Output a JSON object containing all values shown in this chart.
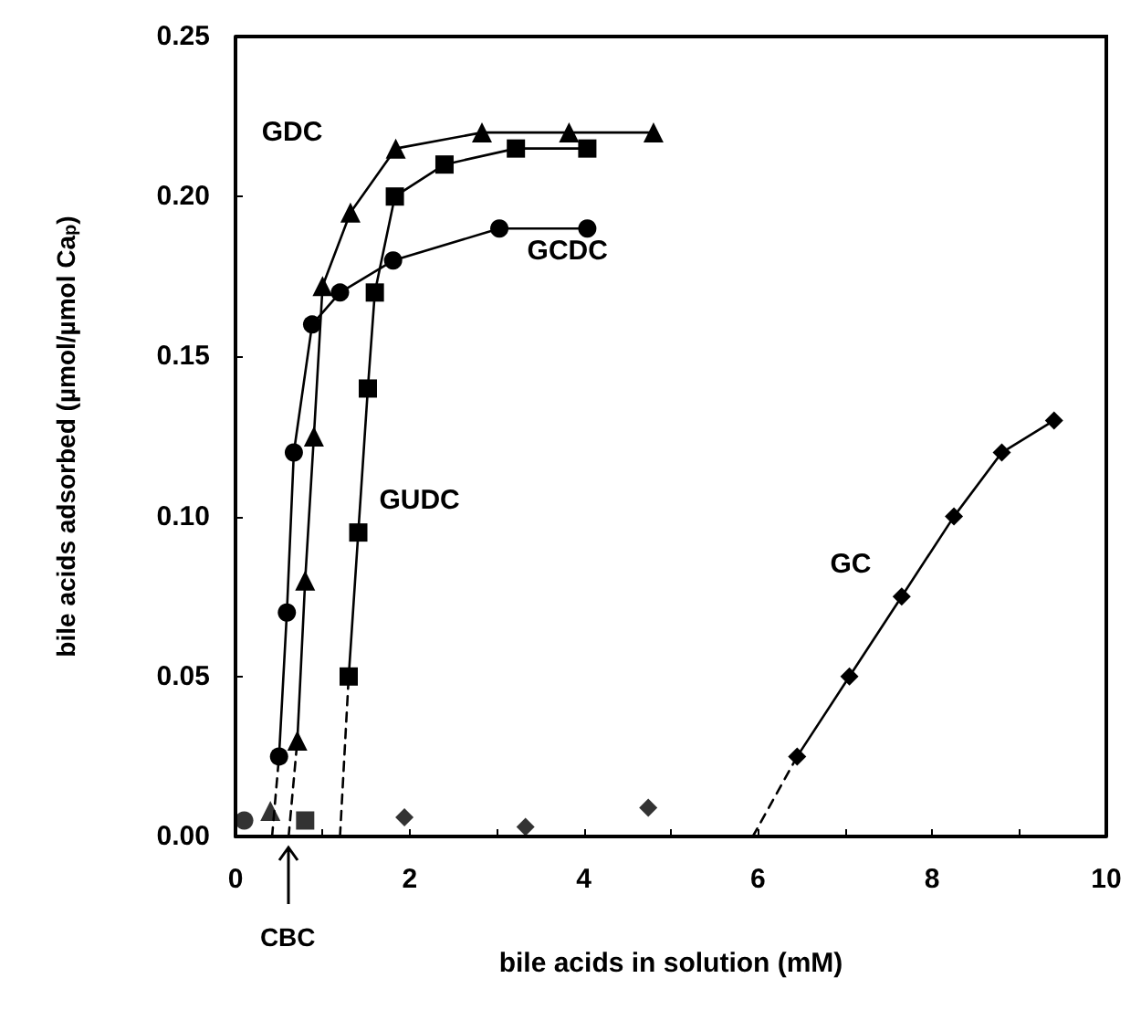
{
  "chart_data": {
    "type": "line",
    "xlabel": "bile acids in solution (mM)",
    "ylabel": "bile acids adsorbed (µmol/µmol Ca$_{p}$)",
    "xlim": [
      0,
      10
    ],
    "ylim": [
      0,
      0.25
    ],
    "xticks": [
      0,
      {
        "value": 1,
        "label": null
      },
      2,
      {
        "value": 3,
        "label": null
      },
      4,
      {
        "value": 5,
        "label": null
      },
      6,
      {
        "value": 7,
        "label": null
      },
      8,
      {
        "value": 9,
        "label": null
      },
      10
    ],
    "yticks": [
      {
        "value": 0,
        "label": "0.00"
      },
      {
        "value": 0.05,
        "label": "0.05"
      },
      {
        "value": 0.1,
        "label": "0.10"
      },
      {
        "value": 0.15,
        "label": "0.15"
      },
      {
        "value": 0.2,
        "label": "0.20"
      },
      {
        "value": 0.25,
        "label": "0.25"
      }
    ],
    "grid": false,
    "legend": false,
    "annotations": [
      {
        "text": "CBC",
        "x": 0.6,
        "y": 0
      }
    ],
    "series": [
      {
        "name": "GDC",
        "color": "#000000",
        "marker": "triangle",
        "line_style": "solid",
        "x": [
          0.71,
          0.8,
          0.9,
          1.0,
          1.32,
          1.84,
          2.83,
          3.83,
          4.8
        ],
        "values": [
          0.03,
          0.08,
          0.125,
          0.172,
          0.195,
          0.215,
          0.22,
          0.22,
          0.22
        ]
      },
      {
        "name": "GCDC",
        "color": "#000000",
        "marker": "circle",
        "line_style": "solid",
        "x": [
          0.5,
          0.59,
          0.67,
          0.88,
          1.2,
          1.81,
          3.03,
          4.04
        ],
        "values": [
          0.025,
          0.07,
          0.12,
          0.16,
          0.17,
          0.18,
          0.19,
          0.19
        ]
      },
      {
        "name": "GUDC",
        "color": "#000000",
        "marker": "square",
        "line_style": "solid",
        "x": [
          1.3,
          1.41,
          1.52,
          1.6,
          1.83,
          2.4,
          3.22,
          4.04
        ],
        "values": [
          0.05,
          0.095,
          0.14,
          0.17,
          0.2,
          0.21,
          0.215,
          0.215
        ]
      },
      {
        "name": "GC",
        "color": "#000000",
        "marker": "diamond",
        "line_style": "solid",
        "x": [
          6.45,
          7.05,
          7.65,
          8.25,
          8.8,
          9.4
        ],
        "values": [
          0.025,
          0.05,
          0.075,
          0.1,
          0.12,
          0.13
        ]
      },
      {
        "color": "#000000",
        "marker": "none",
        "line_style": "dashed",
        "x": [
          0.61,
          0.71
        ],
        "values": [
          0,
          0.03
        ]
      },
      {
        "color": "#000000",
        "marker": "none",
        "line_style": "dashed",
        "x": [
          0.42,
          0.5
        ],
        "values": [
          0,
          0.025
        ]
      },
      {
        "color": "#000000",
        "marker": "none",
        "line_style": "dashed",
        "x": [
          1.2,
          1.3
        ],
        "values": [
          0,
          0.05
        ]
      },
      {
        "color": "#000000",
        "marker": "none",
        "line_style": "dashed",
        "x": [
          5.94,
          6.45
        ],
        "values": [
          0,
          0.025
        ]
      },
      {
        "type": "scatter",
        "color": "#000000",
        "marker": "triangle",
        "x": [
          0.4
        ],
        "values": [
          0.008
        ]
      },
      {
        "type": "scatter",
        "color": "#000000",
        "marker": "circle",
        "x": [
          0.1
        ],
        "values": [
          0.005
        ]
      },
      {
        "type": "scatter",
        "color": "#000000",
        "marker": "square",
        "x": [
          0.8
        ],
        "values": [
          0.005
        ]
      },
      {
        "type": "scatter",
        "color": "#000000",
        "marker": "diamond",
        "x": [
          1.94,
          3.33,
          4.74
        ],
        "values": [
          0.006,
          0.003,
          0.009
        ]
      }
    ]
  }
}
